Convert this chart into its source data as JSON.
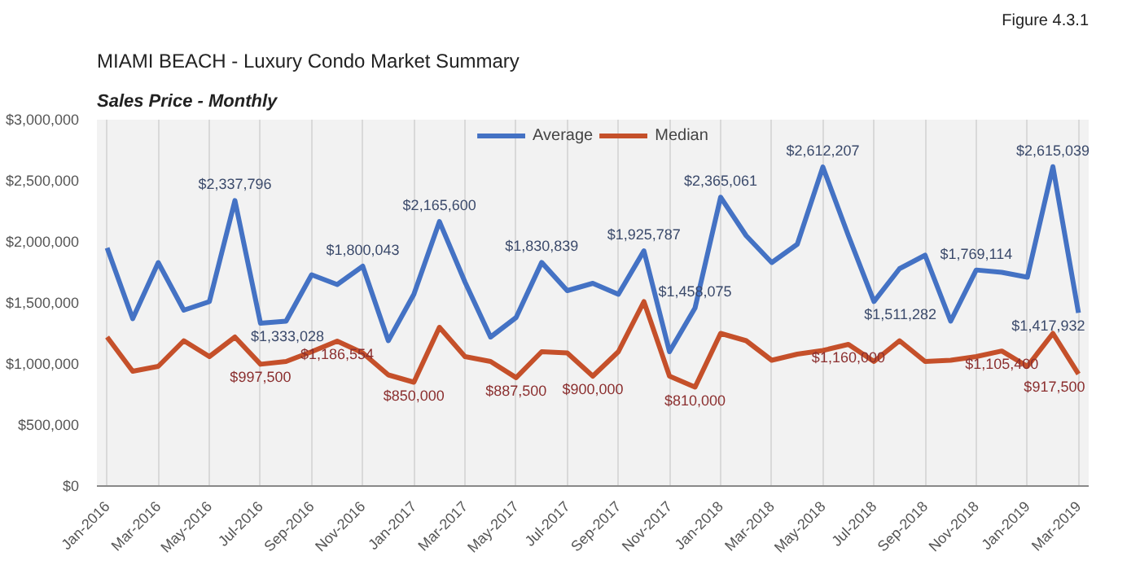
{
  "chart_data": {
    "type": "line",
    "title": "MIAMI BEACH - Luxury Condo Market Summary",
    "subtitle": "Sales Price - Monthly",
    "annotations": [
      "Figure 4.3.1"
    ],
    "categories": [
      "Jan-2016",
      null,
      "Mar-2016",
      null,
      "May-2016",
      null,
      "Jul-2016",
      null,
      "Sep-2016",
      null,
      "Nov-2016",
      null,
      "Jan-2017",
      null,
      "Mar-2017",
      null,
      "May-2017",
      null,
      "Jul-2017",
      null,
      "Sep-2017",
      null,
      "Nov-2017",
      null,
      "Jan-2018",
      null,
      "Mar-2018",
      null,
      "May-2018",
      null,
      "Jul-2018",
      null,
      "Sep-2018",
      null,
      "Nov-2018",
      null,
      "Jan-2019",
      null,
      "Mar-2019"
    ],
    "series": [
      {
        "name": "Average",
        "color": "#4472c4",
        "values": [
          1950000,
          1370000,
          1830000,
          1440000,
          1510000,
          2337796,
          1333028,
          1350000,
          1730000,
          1650000,
          1800043,
          1190000,
          1570000,
          2165600,
          1670000,
          1220000,
          1380000,
          1830839,
          1600000,
          1660000,
          1570000,
          1925787,
          1100000,
          1458075,
          2365061,
          2050000,
          1830000,
          1980000,
          2612207,
          2050000,
          1511282,
          1780000,
          1890000,
          1350000,
          1769114,
          1750000,
          1710000,
          2615039,
          1417932
        ],
        "value_labels": [
          null,
          null,
          null,
          null,
          null,
          "$2,337,796",
          "$1,333,028",
          null,
          null,
          null,
          "$1,800,043",
          null,
          null,
          "$2,165,600",
          null,
          null,
          null,
          "$1,830,839",
          null,
          null,
          null,
          "$1,925,787",
          null,
          "$1,458,075",
          "$2,365,061",
          null,
          null,
          null,
          "$2,612,207",
          null,
          "$1,511,282",
          null,
          null,
          null,
          "$1,769,114",
          null,
          null,
          "$2,615,039",
          "$1,417,932"
        ]
      },
      {
        "name": "Median",
        "color": "#c5502a",
        "values": [
          1220000,
          940000,
          980000,
          1190000,
          1060000,
          1220000,
          997500,
          1020000,
          1100000,
          1186554,
          1090000,
          910000,
          850000,
          1300000,
          1060000,
          1020000,
          887500,
          1100000,
          1090000,
          900000,
          1100000,
          1510000,
          900000,
          810000,
          1250000,
          1190000,
          1030000,
          1080000,
          1110000,
          1160000,
          1020000,
          1190000,
          1020000,
          1030000,
          1060000,
          1105400,
          980000,
          1250000,
          917500
        ],
        "value_labels": [
          null,
          null,
          null,
          null,
          null,
          null,
          "$997,500",
          null,
          null,
          "$1,186,554",
          null,
          null,
          "$850,000",
          null,
          null,
          null,
          "$887,500",
          null,
          null,
          "$900,000",
          null,
          null,
          null,
          "$810,000",
          null,
          null,
          null,
          null,
          null,
          "$1,160,000",
          null,
          null,
          null,
          null,
          null,
          "$1,105,400",
          null,
          null,
          "$917,500"
        ]
      }
    ],
    "ylim": [
      0,
      3000000
    ],
    "yticks": [
      {
        "value": 0,
        "label": "$0"
      },
      {
        "value": 500000,
        "label": "$500,000"
      },
      {
        "value": 1000000,
        "label": "$1,000,000"
      },
      {
        "value": 1500000,
        "label": "$1,500,000"
      },
      {
        "value": 2000000,
        "label": "$2,000,000"
      },
      {
        "value": 2500000,
        "label": "$2,500,000"
      },
      {
        "value": 3000000,
        "label": "$3,000,000"
      }
    ],
    "grid": "x",
    "legend": "top",
    "line_style": "solid"
  }
}
